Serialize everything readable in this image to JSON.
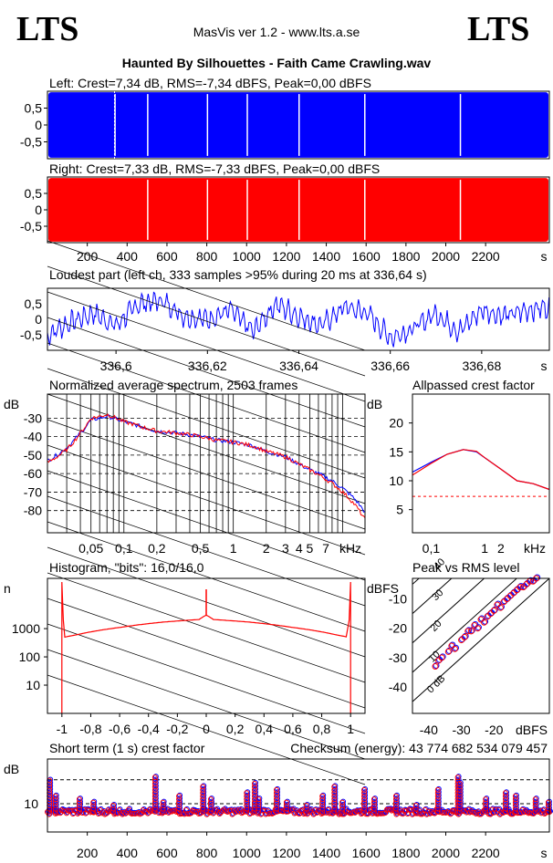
{
  "header": {
    "logo_left": "LTS",
    "logo_right": "LTS",
    "app": "MasVis ver 1.2 - www.lts.a.se",
    "file": "Haunted By Silhouettes - Faith Came Crawling.wav"
  },
  "colors": {
    "left": "#0000ff",
    "right": "#ff0000"
  },
  "chart_data": [
    {
      "id": "left",
      "type": "area",
      "title": "Left: Crest=7,34 dB, RMS=-7,34 dBFS, Peak=0,00 dBFS",
      "yticks": [
        "0,5",
        "0",
        "-0,5"
      ],
      "ylim": [
        -1,
        1
      ],
      "xlim": [
        0,
        2520
      ],
      "fill_level": 0.97,
      "gaps_s": [
        336,
        500,
        800,
        1000,
        1260,
        1590,
        2070
      ],
      "marker_s": 336.64
    },
    {
      "id": "right",
      "type": "area",
      "title": "Right: Crest=7,33 dB, RMS=-7,33 dBFS, Peak=0,00 dBFS",
      "yticks": [
        "0,5",
        "0",
        "-0,5"
      ],
      "ylim": [
        -1,
        1
      ],
      "xlim": [
        0,
        2520
      ],
      "xticks": [
        "200",
        "400",
        "600",
        "800",
        "1000",
        "1200",
        "1400",
        "1600",
        "1800",
        "2000",
        "2200"
      ],
      "xtick_values": [
        200,
        400,
        600,
        800,
        1000,
        1200,
        1400,
        1600,
        1800,
        2000,
        2200
      ],
      "xunit": "s",
      "fill_level": 0.97,
      "gaps_s": [
        500,
        800,
        1000,
        1260,
        1590,
        2070
      ]
    },
    {
      "id": "loudest",
      "type": "line",
      "title": "Loudest part (left  ch, 333 samples >95% during 20 ms at 336,64 s)",
      "yticks": [
        "0,5",
        "0",
        "-0,5"
      ],
      "ylim": [
        -1,
        1
      ],
      "xlim": [
        336.585,
        336.6948
      ],
      "xticks": [
        "336,6",
        "336,62",
        "336,64",
        "336,66",
        "336,68"
      ],
      "xtick_values": [
        336.6,
        336.62,
        336.64,
        336.66,
        336.68
      ],
      "xunit": "s",
      "envelope_x": [
        336.585,
        336.59,
        336.595,
        336.6,
        336.605,
        336.61,
        336.615,
        336.62,
        336.625,
        336.63,
        336.635,
        336.64,
        336.645,
        336.65,
        336.655,
        336.66,
        336.665,
        336.67,
        336.675,
        336.68,
        336.685,
        336.69,
        336.6948
      ],
      "envelope_y": [
        -0.5,
        -0.1,
        0.2,
        -0.2,
        0.5,
        0.6,
        0.1,
        0.0,
        0.3,
        -0.4,
        0.5,
        0.1,
        -0.2,
        0.4,
        0.2,
        -0.6,
        -0.3,
        0.2,
        -0.4,
        0.3,
        0.1,
        0.3,
        0.4
      ]
    },
    {
      "id": "spectrum",
      "type": "line",
      "title": "Normalized average spectrum, 2503 frames",
      "ylabel": "dB",
      "yticks": [
        "-30",
        "-40",
        "-50",
        "-60",
        "-70",
        "-80"
      ],
      "ytick_values": [
        -30,
        -40,
        -50,
        -60,
        -70,
        -80
      ],
      "ylim": [
        -92,
        -17
      ],
      "xscale": "log",
      "xlim": [
        0.02,
        16
      ],
      "xticks": [
        "0,05",
        "0,1",
        "0,2",
        "0,5",
        "1",
        "2",
        "3",
        "4",
        "5",
        "7",
        "kHz"
      ],
      "xtick_values": [
        0.05,
        0.1,
        0.2,
        0.5,
        1,
        2,
        3,
        4,
        5,
        7
      ],
      "freq_khz": [
        0.02,
        0.03,
        0.04,
        0.05,
        0.07,
        0.1,
        0.15,
        0.2,
        0.3,
        0.5,
        0.7,
        1,
        1.5,
        2,
        3,
        4,
        5,
        7,
        10,
        13,
        16
      ],
      "series": [
        {
          "color": "#0000ff",
          "values": [
            -53,
            -46,
            -38,
            -31,
            -29,
            -32,
            -35,
            -37,
            -38,
            -40,
            -42,
            -43,
            -45,
            -48,
            -51,
            -55,
            -58,
            -62,
            -68,
            -74,
            -81
          ]
        },
        {
          "color": "#ff0000",
          "values": [
            -54,
            -47,
            -38,
            -30,
            -28,
            -32,
            -35,
            -37,
            -38,
            -40,
            -42,
            -43,
            -45,
            -48,
            -51,
            -55,
            -58,
            -63,
            -70,
            -77,
            -85
          ]
        }
      ]
    },
    {
      "id": "allpass",
      "type": "line",
      "title": "Allpassed crest factor",
      "ylabel": "dB",
      "yticks": [
        "20",
        "15",
        "10",
        "5"
      ],
      "ytick_values": [
        20,
        15,
        10,
        5
      ],
      "ylim": [
        1,
        25
      ],
      "xscale": "log",
      "xlim": [
        0.045,
        16
      ],
      "xticks": [
        "0,1",
        "1",
        "2",
        "kHz"
      ],
      "xtick_values": [
        0.1,
        1,
        2
      ],
      "freq_khz": [
        0.045,
        0.1,
        0.2,
        0.4,
        0.7,
        1,
        2,
        4,
        8,
        16
      ],
      "reference": 7.3,
      "series": [
        {
          "color": "#0000ff",
          "values": [
            11.5,
            13.2,
            14.6,
            15.4,
            15.0,
            14.0,
            12.0,
            10.0,
            9.5,
            8.5
          ]
        },
        {
          "color": "#ff0000",
          "values": [
            11.0,
            13.0,
            14.6,
            15.4,
            15.1,
            14.0,
            12.0,
            10.0,
            9.5,
            8.5
          ]
        }
      ]
    },
    {
      "id": "histogram",
      "type": "line",
      "title": "Histogram, \"bits\": 16,0/16,0",
      "ylabel": "n",
      "yticks": [
        "1000",
        "100",
        "10"
      ],
      "ytick_values": [
        1000,
        100,
        10
      ],
      "yscale": "log",
      "ylim": [
        1,
        60000
      ],
      "xlim": [
        -1.1,
        1.1
      ],
      "xticks": [
        "-1",
        "-0,8",
        "-0,6",
        "-0,4",
        "-0,2",
        "0",
        "0,2",
        "0,4",
        "0,6",
        "0,8",
        "1"
      ],
      "xtick_values": [
        -1,
        -0.8,
        -0.6,
        -0.4,
        -0.2,
        0,
        0.2,
        0.4,
        0.6,
        0.8,
        1
      ],
      "x": [
        -0.98,
        -0.9,
        -0.6,
        -0.3,
        -0.05,
        0,
        0.05,
        0.3,
        0.6,
        0.9,
        0.98
      ],
      "values": [
        500,
        600,
        1100,
        1700,
        2100,
        3000,
        2100,
        1700,
        1100,
        600,
        500
      ]
    },
    {
      "id": "peak_rms",
      "type": "scatter",
      "title": "Peak vs RMS level",
      "ylabel": "dBFS",
      "xlabel": "dBFS",
      "yticks": [
        "-10",
        "-20",
        "-30",
        "-40"
      ],
      "ytick_values": [
        -10,
        -20,
        -30,
        -40
      ],
      "xticks": [
        "-40",
        "-30",
        "-20"
      ],
      "xtick_values": [
        -40,
        -30,
        -20
      ],
      "xlim": [
        -45,
        -3
      ],
      "ylim": [
        -49,
        -3
      ],
      "diagonals": [
        "40",
        "30",
        "20",
        "10",
        "0 dB"
      ],
      "diagonal_values": [
        40,
        30,
        20,
        10,
        0
      ],
      "x": [
        -38,
        -37,
        -36,
        -34,
        -33,
        -32,
        -30,
        -29,
        -28,
        -27,
        -26,
        -25,
        -24,
        -23,
        -22,
        -21,
        -20,
        -19,
        -18,
        -17,
        -16,
        -15,
        -14,
        -13,
        -12,
        -11,
        -10,
        -9,
        -8,
        -7
      ],
      "values": [
        -33,
        -31,
        -30,
        -28,
        -26,
        -27,
        -24,
        -23,
        -21,
        -21,
        -19,
        -20,
        -17,
        -18,
        -16,
        -15,
        -14,
        -12,
        -13,
        -11,
        -10,
        -9,
        -8,
        -7,
        -6,
        -6,
        -5,
        -4,
        -4,
        -3
      ]
    },
    {
      "id": "crest",
      "type": "scatter",
      "title": "Short term (1 s) crest factor",
      "checksum": "Checksum (energy):  43 774 682 534 079 457",
      "ylabel": "dB",
      "yticks": [
        "10"
      ],
      "ytick_values": [
        10
      ],
      "yscale": "log",
      "ylim": [
        5,
        30
      ],
      "xlim": [
        0,
        2520
      ],
      "xticks": [
        "200",
        "400",
        "600",
        "800",
        "1000",
        "1200",
        "1400",
        "1600",
        "1800",
        "2000",
        "2200"
      ],
      "xtick_values": [
        200,
        400,
        600,
        800,
        1000,
        1200,
        1400,
        1600,
        1800,
        2000,
        2200
      ],
      "xunit": "s",
      "hlines": [
        18,
        10
      ],
      "typical": 8.2,
      "peaks_x": [
        10,
        40,
        160,
        230,
        330,
        540,
        580,
        660,
        780,
        820,
        1000,
        1040,
        1060,
        1150,
        1200,
        1300,
        1380,
        1440,
        1480,
        1590,
        1640,
        1750,
        1850,
        1960,
        2060,
        2070,
        2200,
        2300,
        2350,
        2450,
        2515
      ],
      "peaks_y": [
        18,
        13,
        12,
        11,
        10,
        20,
        11,
        13,
        16,
        12,
        14,
        17,
        12,
        15,
        11,
        10,
        13,
        16,
        11,
        15,
        12,
        13,
        10,
        15,
        20,
        17,
        12,
        14,
        13,
        12,
        11
      ]
    }
  ]
}
